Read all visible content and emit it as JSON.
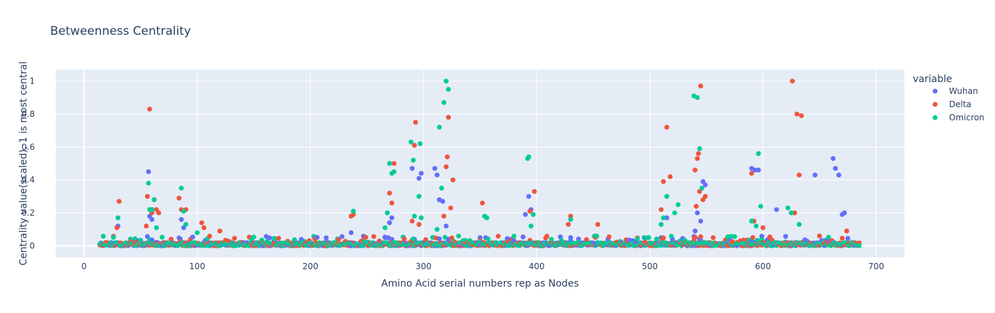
{
  "chart_data": {
    "type": "scatter",
    "title": "Betweenness Centrality",
    "xlabel": "Amino Acid serial numbers rep as Nodes",
    "ylabel": "Centrality value(scaled), 1 is most central",
    "xlim": [
      -25,
      725
    ],
    "ylim": [
      -0.07,
      1.07
    ],
    "xticks": [
      0,
      100,
      200,
      300,
      400,
      500,
      600,
      700
    ],
    "yticks": [
      0,
      0.2,
      0.4,
      0.6,
      0.8,
      1
    ],
    "grid": true,
    "legend": {
      "title": "variable",
      "position": "right"
    },
    "series": [
      {
        "name": "Wuhan",
        "color": "#636efa",
        "points": [
          [
            30,
            0.12
          ],
          [
            57,
            0.45
          ],
          [
            58,
            0.18
          ],
          [
            60,
            0.16
          ],
          [
            86,
            0.16
          ],
          [
            88,
            0.11
          ],
          [
            236,
            0.08
          ],
          [
            266,
            0.05
          ],
          [
            270,
            0.14
          ],
          [
            272,
            0.17
          ],
          [
            290,
            0.47
          ],
          [
            292,
            0.04
          ],
          [
            296,
            0.41
          ],
          [
            298,
            0.44
          ],
          [
            310,
            0.47
          ],
          [
            312,
            0.43
          ],
          [
            314,
            0.28
          ],
          [
            317,
            0.27
          ],
          [
            320,
            0.12
          ],
          [
            323,
            0.02
          ],
          [
            350,
            0.05
          ],
          [
            390,
            0.19
          ],
          [
            393,
            0.3
          ],
          [
            395,
            0.22
          ],
          [
            430,
            0.05
          ],
          [
            510,
            0.05
          ],
          [
            515,
            0.17
          ],
          [
            520,
            0.04
          ],
          [
            540,
            0.09
          ],
          [
            542,
            0.2
          ],
          [
            545,
            0.15
          ],
          [
            547,
            0.39
          ],
          [
            549,
            0.37
          ],
          [
            590,
            0.47
          ],
          [
            593,
            0.46
          ],
          [
            596,
            0.46
          ],
          [
            612,
            0.22
          ],
          [
            646,
            0.43
          ],
          [
            662,
            0.53
          ],
          [
            664,
            0.47
          ],
          [
            667,
            0.43
          ],
          [
            670,
            0.19
          ],
          [
            672,
            0.2
          ]
        ]
      },
      {
        "name": "Delta",
        "color": "#ef553b",
        "points": [
          [
            29,
            0.11
          ],
          [
            31,
            0.27
          ],
          [
            55,
            0.12
          ],
          [
            56,
            0.3
          ],
          [
            58,
            0.83
          ],
          [
            60,
            0.2
          ],
          [
            62,
            0.28
          ],
          [
            64,
            0.22
          ],
          [
            66,
            0.2
          ],
          [
            84,
            0.29
          ],
          [
            86,
            0.22
          ],
          [
            90,
            0.22
          ],
          [
            104,
            0.14
          ],
          [
            106,
            0.11
          ],
          [
            120,
            0.09
          ],
          [
            236,
            0.18
          ],
          [
            238,
            0.19
          ],
          [
            270,
            0.32
          ],
          [
            272,
            0.26
          ],
          [
            274,
            0.5
          ],
          [
            290,
            0.15
          ],
          [
            292,
            0.61
          ],
          [
            293,
            0.75
          ],
          [
            296,
            0.13
          ],
          [
            318,
            0.18
          ],
          [
            320,
            0.48
          ],
          [
            321,
            0.54
          ],
          [
            322,
            0.78
          ],
          [
            324,
            0.23
          ],
          [
            326,
            0.4
          ],
          [
            352,
            0.26
          ],
          [
            394,
            0.21
          ],
          [
            398,
            0.33
          ],
          [
            428,
            0.13
          ],
          [
            430,
            0.18
          ],
          [
            454,
            0.13
          ],
          [
            510,
            0.22
          ],
          [
            512,
            0.39
          ],
          [
            515,
            0.72
          ],
          [
            518,
            0.42
          ],
          [
            540,
            0.46
          ],
          [
            541,
            0.24
          ],
          [
            542,
            0.53
          ],
          [
            543,
            0.56
          ],
          [
            544,
            0.33
          ],
          [
            545,
            0.97
          ],
          [
            547,
            0.28
          ],
          [
            549,
            0.3
          ],
          [
            590,
            0.44
          ],
          [
            592,
            0.15
          ],
          [
            600,
            0.11
          ],
          [
            626,
            1.0
          ],
          [
            628,
            0.2
          ],
          [
            630,
            0.8
          ],
          [
            632,
            0.43
          ],
          [
            634,
            0.79
          ],
          [
            650,
            0.06
          ],
          [
            674,
            0.09
          ]
        ]
      },
      {
        "name": "Omicron",
        "color": "#00cc96",
        "points": [
          [
            30,
            0.17
          ],
          [
            57,
            0.38
          ],
          [
            58,
            0.22
          ],
          [
            60,
            0.22
          ],
          [
            62,
            0.28
          ],
          [
            64,
            0.11
          ],
          [
            86,
            0.35
          ],
          [
            88,
            0.21
          ],
          [
            90,
            0.13
          ],
          [
            100,
            0.08
          ],
          [
            238,
            0.21
          ],
          [
            266,
            0.11
          ],
          [
            268,
            0.2
          ],
          [
            270,
            0.5
          ],
          [
            272,
            0.44
          ],
          [
            274,
            0.45
          ],
          [
            289,
            0.63
          ],
          [
            291,
            0.52
          ],
          [
            292,
            0.18
          ],
          [
            296,
            0.3
          ],
          [
            297,
            0.62
          ],
          [
            298,
            0.17
          ],
          [
            312,
            0.1
          ],
          [
            314,
            0.72
          ],
          [
            316,
            0.35
          ],
          [
            318,
            0.87
          ],
          [
            320,
            1.0
          ],
          [
            322,
            0.95
          ],
          [
            354,
            0.18
          ],
          [
            356,
            0.17
          ],
          [
            392,
            0.53
          ],
          [
            393,
            0.54
          ],
          [
            395,
            0.12
          ],
          [
            397,
            0.19
          ],
          [
            430,
            0.16
          ],
          [
            510,
            0.13
          ],
          [
            512,
            0.17
          ],
          [
            515,
            0.3
          ],
          [
            522,
            0.2
          ],
          [
            525,
            0.25
          ],
          [
            539,
            0.91
          ],
          [
            542,
            0.9
          ],
          [
            544,
            0.59
          ],
          [
            546,
            0.35
          ],
          [
            590,
            0.15
          ],
          [
            594,
            0.12
          ],
          [
            596,
            0.56
          ],
          [
            598,
            0.24
          ],
          [
            622,
            0.23
          ],
          [
            625,
            0.2
          ],
          [
            632,
            0.13
          ]
        ]
      }
    ]
  }
}
